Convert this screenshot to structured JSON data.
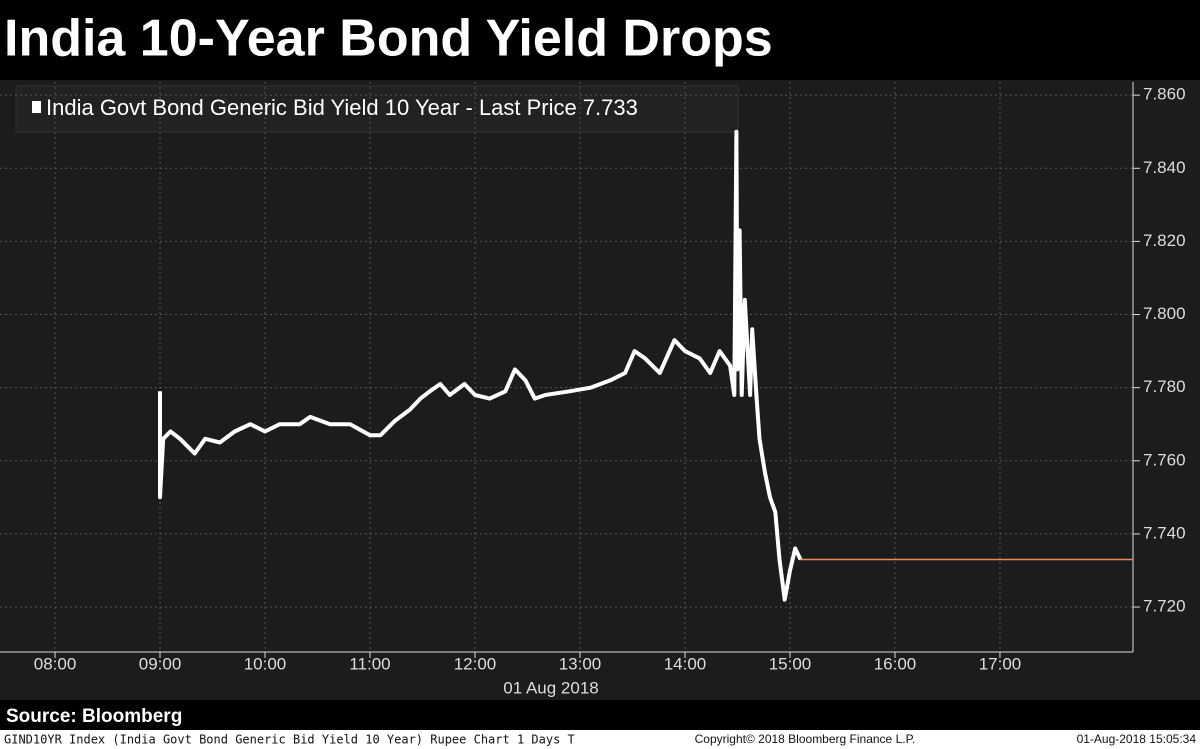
{
  "chart_data": {
    "type": "line",
    "title": "India 10-Year Bond Yield Drops",
    "x_label": "01 Aug 2018",
    "source": "Source: Bloomberg",
    "footer_left": "GIND10YR Index (India Govt Bond Generic Bid Yield 10 Year) Rupee Chart 1 Days  T",
    "copyright": "Copyright© 2018 Bloomberg Finance L.P.",
    "timestamp": "01-Aug-2018 15:05:34",
    "last_price": 7.733,
    "last_price_color": "#e8895a",
    "x": [
      9.0,
      9.0,
      9.03,
      9.1,
      9.19,
      9.33,
      9.43,
      9.57,
      9.71,
      9.86,
      10.0,
      10.14,
      10.33,
      10.43,
      10.62,
      10.81,
      11.0,
      11.1,
      11.24,
      11.38,
      11.48,
      11.57,
      11.67,
      11.76,
      11.9,
      12.0,
      12.14,
      12.29,
      12.38,
      12.48,
      12.57,
      12.67,
      12.9,
      13.1,
      13.29,
      13.43,
      13.52,
      13.62,
      13.76,
      13.9,
      14.0,
      14.14,
      14.24,
      14.33,
      14.43,
      14.47,
      14.49,
      14.5,
      14.52,
      14.54,
      14.57,
      14.62,
      14.64,
      14.68,
      14.71,
      14.76,
      14.81,
      14.86,
      14.9,
      14.95,
      15.0,
      15.05,
      15.1
    ],
    "series": [
      {
        "name": "India Govt Bond Generic Bid Yield 10 Year - Last Price",
        "color": "#ffffff",
        "values": [
          7.779,
          7.75,
          7.766,
          7.768,
          7.766,
          7.762,
          7.766,
          7.765,
          7.768,
          7.77,
          7.768,
          7.77,
          7.77,
          7.772,
          7.77,
          7.77,
          7.767,
          7.767,
          7.771,
          7.774,
          7.777,
          7.779,
          7.781,
          7.778,
          7.781,
          7.778,
          7.777,
          7.779,
          7.785,
          7.782,
          7.777,
          7.778,
          7.779,
          7.78,
          7.782,
          7.784,
          7.79,
          7.788,
          7.784,
          7.793,
          7.79,
          7.788,
          7.784,
          7.79,
          7.786,
          7.778,
          7.85,
          7.785,
          7.823,
          7.778,
          7.804,
          7.778,
          7.796,
          7.778,
          7.766,
          7.757,
          7.75,
          7.746,
          7.733,
          7.722,
          7.73,
          7.736,
          7.733
        ]
      }
    ],
    "xlim": [
      7.476,
      18.267
    ],
    "xticks": [
      {
        "value": 8,
        "label": "08:00"
      },
      {
        "value": 9,
        "label": "09:00"
      },
      {
        "value": 10,
        "label": "10:00"
      },
      {
        "value": 11,
        "label": "11:00"
      },
      {
        "value": 12,
        "label": "12:00"
      },
      {
        "value": 13,
        "label": "13:00"
      },
      {
        "value": 14,
        "label": "14:00"
      },
      {
        "value": 15,
        "label": "15:00"
      },
      {
        "value": 16,
        "label": "16:00"
      },
      {
        "value": 17,
        "label": "17:00"
      }
    ],
    "ylim": [
      7.7077,
      7.8636
    ],
    "yticks": [
      {
        "value": 7.72,
        "label": "7.720"
      },
      {
        "value": 7.74,
        "label": "7.740"
      },
      {
        "value": 7.76,
        "label": "7.760"
      },
      {
        "value": 7.78,
        "label": "7.780"
      },
      {
        "value": 7.8,
        "label": "7.800"
      },
      {
        "value": 7.82,
        "label": "7.820"
      },
      {
        "value": 7.84,
        "label": "7.840"
      },
      {
        "value": 7.86,
        "label": "7.860"
      }
    ],
    "grid": true
  }
}
